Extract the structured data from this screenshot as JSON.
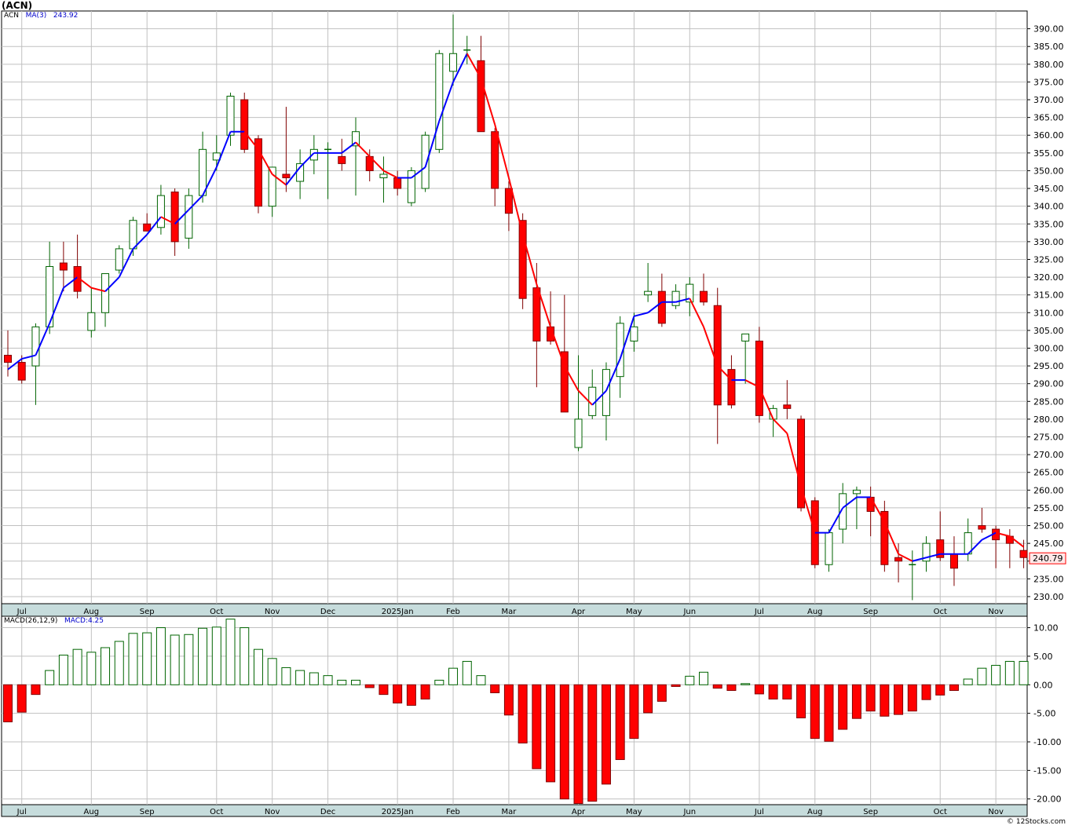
{
  "header": {
    "title": "(ACN)"
  },
  "legend": {
    "symbol": "ACN",
    "ma_label": "MA(3)",
    "ma_value": "243.92",
    "macd_label": "MACD(26,12,9)",
    "macd_value": "MACD:4.25"
  },
  "footer": {
    "credit": "© 12Stocks.com"
  },
  "colors": {
    "up": "#006400",
    "down": "#ff0000",
    "ma_up": "#0000ff",
    "ma_down": "#ff0000",
    "grid": "#c0c0c0",
    "axis_band": "#c6dcdc"
  },
  "chart_data": [
    {
      "type": "candlestick",
      "title": "(ACN)",
      "ylim": [
        228,
        395
      ],
      "yticks": [
        230,
        235,
        240,
        245,
        250,
        255,
        260,
        265,
        270,
        275,
        280,
        285,
        290,
        295,
        300,
        305,
        310,
        315,
        320,
        325,
        330,
        335,
        340,
        345,
        350,
        355,
        360,
        365,
        370,
        375,
        380,
        385,
        390
      ],
      "ytick_labels": [
        "230.00",
        "235.00",
        "240.00",
        "245.00",
        "250.00",
        "255.00",
        "260.00",
        "265.00",
        "270.00",
        "275.00",
        "280.00",
        "285.00",
        "290.00",
        "295.00",
        "300.00",
        "305.00",
        "310.00",
        "315.00",
        "320.00",
        "325.00",
        "330.00",
        "335.00",
        "340.00",
        "345.00",
        "350.00",
        "355.00",
        "360.00",
        "365.00",
        "370.00",
        "375.00",
        "380.00",
        "385.00",
        "390.00"
      ],
      "x_labels": [
        {
          "label": "Jul",
          "index": 1
        },
        {
          "label": "Aug",
          "index": 6
        },
        {
          "label": "Sep",
          "index": 10
        },
        {
          "label": "Oct",
          "index": 15
        },
        {
          "label": "Nov",
          "index": 19
        },
        {
          "label": "Dec",
          "index": 23
        },
        {
          "label": "2025Jan",
          "index": 28
        },
        {
          "label": "Feb",
          "index": 32
        },
        {
          "label": "Mar",
          "index": 36
        },
        {
          "label": "Apr",
          "index": 41
        },
        {
          "label": "May",
          "index": 45
        },
        {
          "label": "Jun",
          "index": 49
        },
        {
          "label": "Jul",
          "index": 54
        },
        {
          "label": "Aug",
          "index": 58
        },
        {
          "label": "Sep",
          "index": 62
        },
        {
          "label": "Oct",
          "index": 67
        },
        {
          "label": "Nov",
          "index": 71
        }
      ],
      "last_price": "240.79",
      "series": {
        "ohlc": [
          [
            298,
            305,
            292,
            296
          ],
          [
            296,
            298,
            290,
            291
          ],
          [
            295,
            307,
            284,
            306
          ],
          [
            306,
            330,
            304,
            323
          ],
          [
            324,
            330,
            316,
            322
          ],
          [
            323,
            332,
            314,
            316
          ],
          [
            305,
            317,
            303,
            310
          ],
          [
            310,
            320,
            306,
            321
          ],
          [
            322,
            329,
            321,
            328
          ],
          [
            328,
            337,
            326,
            336
          ],
          [
            335,
            338,
            333,
            333
          ],
          [
            334,
            346,
            332,
            343
          ],
          [
            344,
            345,
            326,
            330
          ],
          [
            331,
            345,
            328,
            343
          ],
          [
            343,
            361,
            341,
            356
          ],
          [
            353,
            360,
            350,
            355
          ],
          [
            360,
            372,
            357,
            371
          ],
          [
            370,
            372,
            355,
            356
          ],
          [
            359,
            360,
            338,
            340
          ],
          [
            340,
            350,
            337,
            351
          ],
          [
            349,
            368,
            344,
            348
          ],
          [
            347,
            356,
            342,
            352
          ],
          [
            353,
            360,
            349,
            356
          ],
          [
            356,
            358,
            342,
            356
          ],
          [
            354,
            359,
            350,
            352
          ],
          [
            357,
            365,
            343,
            361
          ],
          [
            354,
            356,
            347,
            350
          ],
          [
            348,
            354,
            341,
            349
          ],
          [
            348,
            350,
            343,
            345
          ],
          [
            341,
            351,
            340,
            350
          ],
          [
            345,
            361,
            344,
            360
          ],
          [
            356,
            384,
            355,
            383
          ],
          [
            378,
            394,
            374,
            383
          ],
          [
            384,
            388,
            380,
            384
          ],
          [
            381,
            388,
            361,
            361
          ],
          [
            361,
            362,
            340,
            345
          ],
          [
            345,
            347,
            333,
            338
          ],
          [
            336,
            338,
            311,
            314
          ],
          [
            317,
            324,
            289,
            302
          ],
          [
            306,
            316,
            301,
            302
          ],
          [
            299,
            315,
            282,
            282
          ],
          [
            272,
            298,
            271,
            280
          ],
          [
            281,
            294,
            280,
            289
          ],
          [
            281,
            296,
            274,
            294
          ],
          [
            292,
            309,
            286,
            307
          ],
          [
            302,
            310,
            299,
            306
          ],
          [
            315,
            324,
            313,
            316
          ],
          [
            316,
            321,
            306,
            307
          ],
          [
            312,
            318,
            311,
            316
          ],
          [
            313,
            320,
            309,
            318
          ],
          [
            316,
            321,
            312,
            313
          ],
          [
            312,
            317,
            273,
            284
          ],
          [
            294,
            298,
            283,
            284
          ],
          [
            302,
            304,
            290,
            304
          ],
          [
            302,
            306,
            279,
            281
          ],
          [
            280,
            284,
            275,
            283
          ],
          [
            284,
            291,
            280,
            283
          ],
          [
            280,
            281,
            254,
            255
          ],
          [
            257,
            258,
            238,
            239
          ],
          [
            239,
            249,
            237,
            248
          ],
          [
            249,
            262,
            245,
            259
          ],
          [
            259,
            261,
            249,
            260
          ],
          [
            258,
            261,
            247,
            254
          ],
          [
            254,
            257,
            237,
            239
          ],
          [
            241,
            245,
            234,
            240
          ],
          [
            239,
            243,
            229,
            239
          ],
          [
            240,
            247,
            237,
            245
          ],
          [
            246,
            254,
            240,
            241
          ],
          [
            242,
            247,
            233,
            238
          ],
          [
            242,
            252,
            240,
            248
          ],
          [
            250,
            255,
            248,
            249
          ],
          [
            249,
            250,
            238,
            246
          ],
          [
            247,
            249,
            238,
            245
          ],
          [
            243,
            246,
            238,
            241
          ]
        ],
        "ma3": [
          294,
          297,
          298,
          307,
          317,
          320,
          317,
          316,
          320,
          328,
          332,
          337,
          335,
          339,
          343,
          351,
          361,
          361,
          356,
          349,
          346,
          351,
          355,
          355,
          355,
          358,
          354,
          350,
          348,
          348,
          351,
          364,
          375,
          383,
          376,
          363,
          348,
          332,
          318,
          306,
          295,
          288,
          284,
          288,
          297,
          309,
          310,
          313,
          313,
          314,
          306,
          295,
          291,
          291,
          289,
          280,
          276,
          261,
          248,
          248,
          255,
          258,
          258,
          251,
          242,
          240,
          241,
          242,
          242,
          242,
          246,
          248,
          247,
          244
        ],
        "macd_hist": [
          -6.5,
          -4.8,
          -1.7,
          2.5,
          5.2,
          6.2,
          5.7,
          6.5,
          7.6,
          9.0,
          9.1,
          10.0,
          8.7,
          8.8,
          9.9,
          10.1,
          11.5,
          10.0,
          6.2,
          4.6,
          3.0,
          2.5,
          2.1,
          1.6,
          0.8,
          0.8,
          -0.5,
          -1.7,
          -3.2,
          -3.6,
          -2.5,
          0.8,
          2.9,
          4.1,
          1.6,
          -1.4,
          -5.3,
          -10.2,
          -14.7,
          -17.0,
          -20.0,
          -20.8,
          -20.4,
          -17.4,
          -13.1,
          -9.4,
          -4.9,
          -2.9,
          -0.3,
          1.5,
          2.2,
          -0.6,
          -1.0,
          0.2,
          -1.6,
          -2.5,
          -2.5,
          -5.8,
          -9.4,
          -9.9,
          -7.8,
          -5.9,
          -4.6,
          -5.5,
          -5.2,
          -4.6,
          -2.6,
          -1.8,
          -1.0,
          1.0,
          2.9,
          3.4,
          4.1,
          4.1
        ]
      }
    },
    {
      "type": "bar",
      "title": "MACD(26,12,9)",
      "ylim": [
        -21,
        12
      ],
      "yticks": [
        -20,
        -15,
        -10,
        -5,
        0,
        5,
        10
      ],
      "ytick_labels": [
        "-20.00",
        "-15.00",
        "-10.00",
        "-5.00",
        "0.00",
        "5.00",
        "10.00"
      ]
    }
  ]
}
